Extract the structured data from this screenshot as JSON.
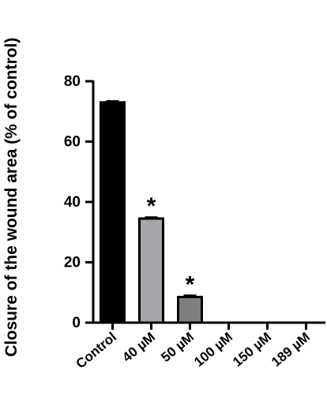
{
  "chart_data": {
    "type": "bar",
    "title": "",
    "xlabel": "",
    "ylabel": "Closure of the wound area (% of control)",
    "ylim": [
      0,
      80
    ],
    "yticks": [
      0,
      20,
      40,
      60,
      80
    ],
    "grid": false,
    "categories": [
      "Control",
      "40 µM",
      "50 µM",
      "100 µM",
      "150 µM",
      "189 µM"
    ],
    "values": [
      73.0,
      34.5,
      8.5,
      0,
      0,
      0
    ],
    "errors": [
      0.4,
      0.4,
      0.5,
      0,
      0,
      0
    ],
    "significance": [
      "",
      "*",
      "*",
      "",
      "",
      ""
    ],
    "bar_colors": [
      "#000000",
      "#a6a6aa",
      "#7f7f7f",
      "#ffffff",
      "#ffffff",
      "#ffffff"
    ]
  }
}
